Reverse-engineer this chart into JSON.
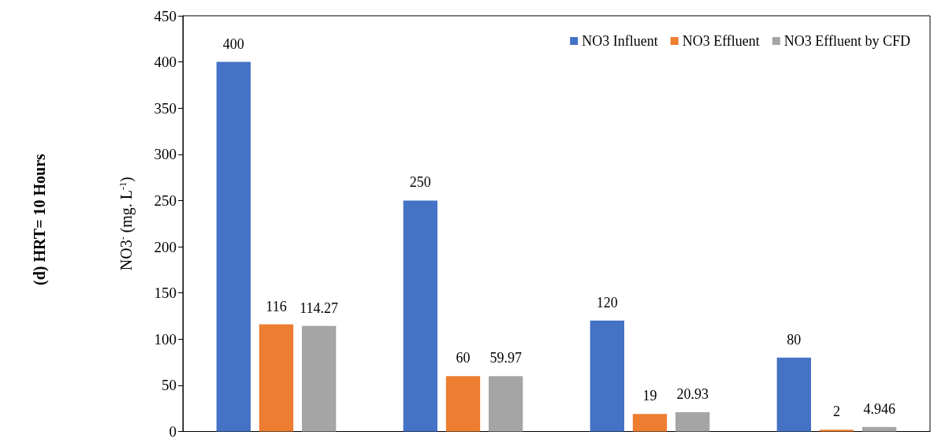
{
  "chart_data": {
    "type": "bar",
    "ylabel": "NO3$^{-}$ (mg. L$^{-1}$)",
    "annotations": [
      "(d) HRT= 10 Hours"
    ],
    "categories": [
      null,
      null,
      null,
      null
    ],
    "series": [
      {
        "name": "NO3 Influent",
        "color": "#4472c4",
        "values": [
          400,
          250,
          120,
          80
        ]
      },
      {
        "name": "NO3 Effluent",
        "color": "#ed7d31",
        "values": [
          116,
          60,
          19,
          2
        ]
      },
      {
        "name": "NO3 Effluent by CFD",
        "color": "#a5a5a5",
        "values": [
          114.27,
          59.97,
          20.93,
          4.946
        ]
      }
    ],
    "ylim": [
      0,
      450
    ],
    "yticks": [
      0,
      50,
      100,
      150,
      200,
      250,
      300,
      350,
      400,
      450
    ],
    "grid": false,
    "legend": "top right",
    "data_labels": true
  }
}
